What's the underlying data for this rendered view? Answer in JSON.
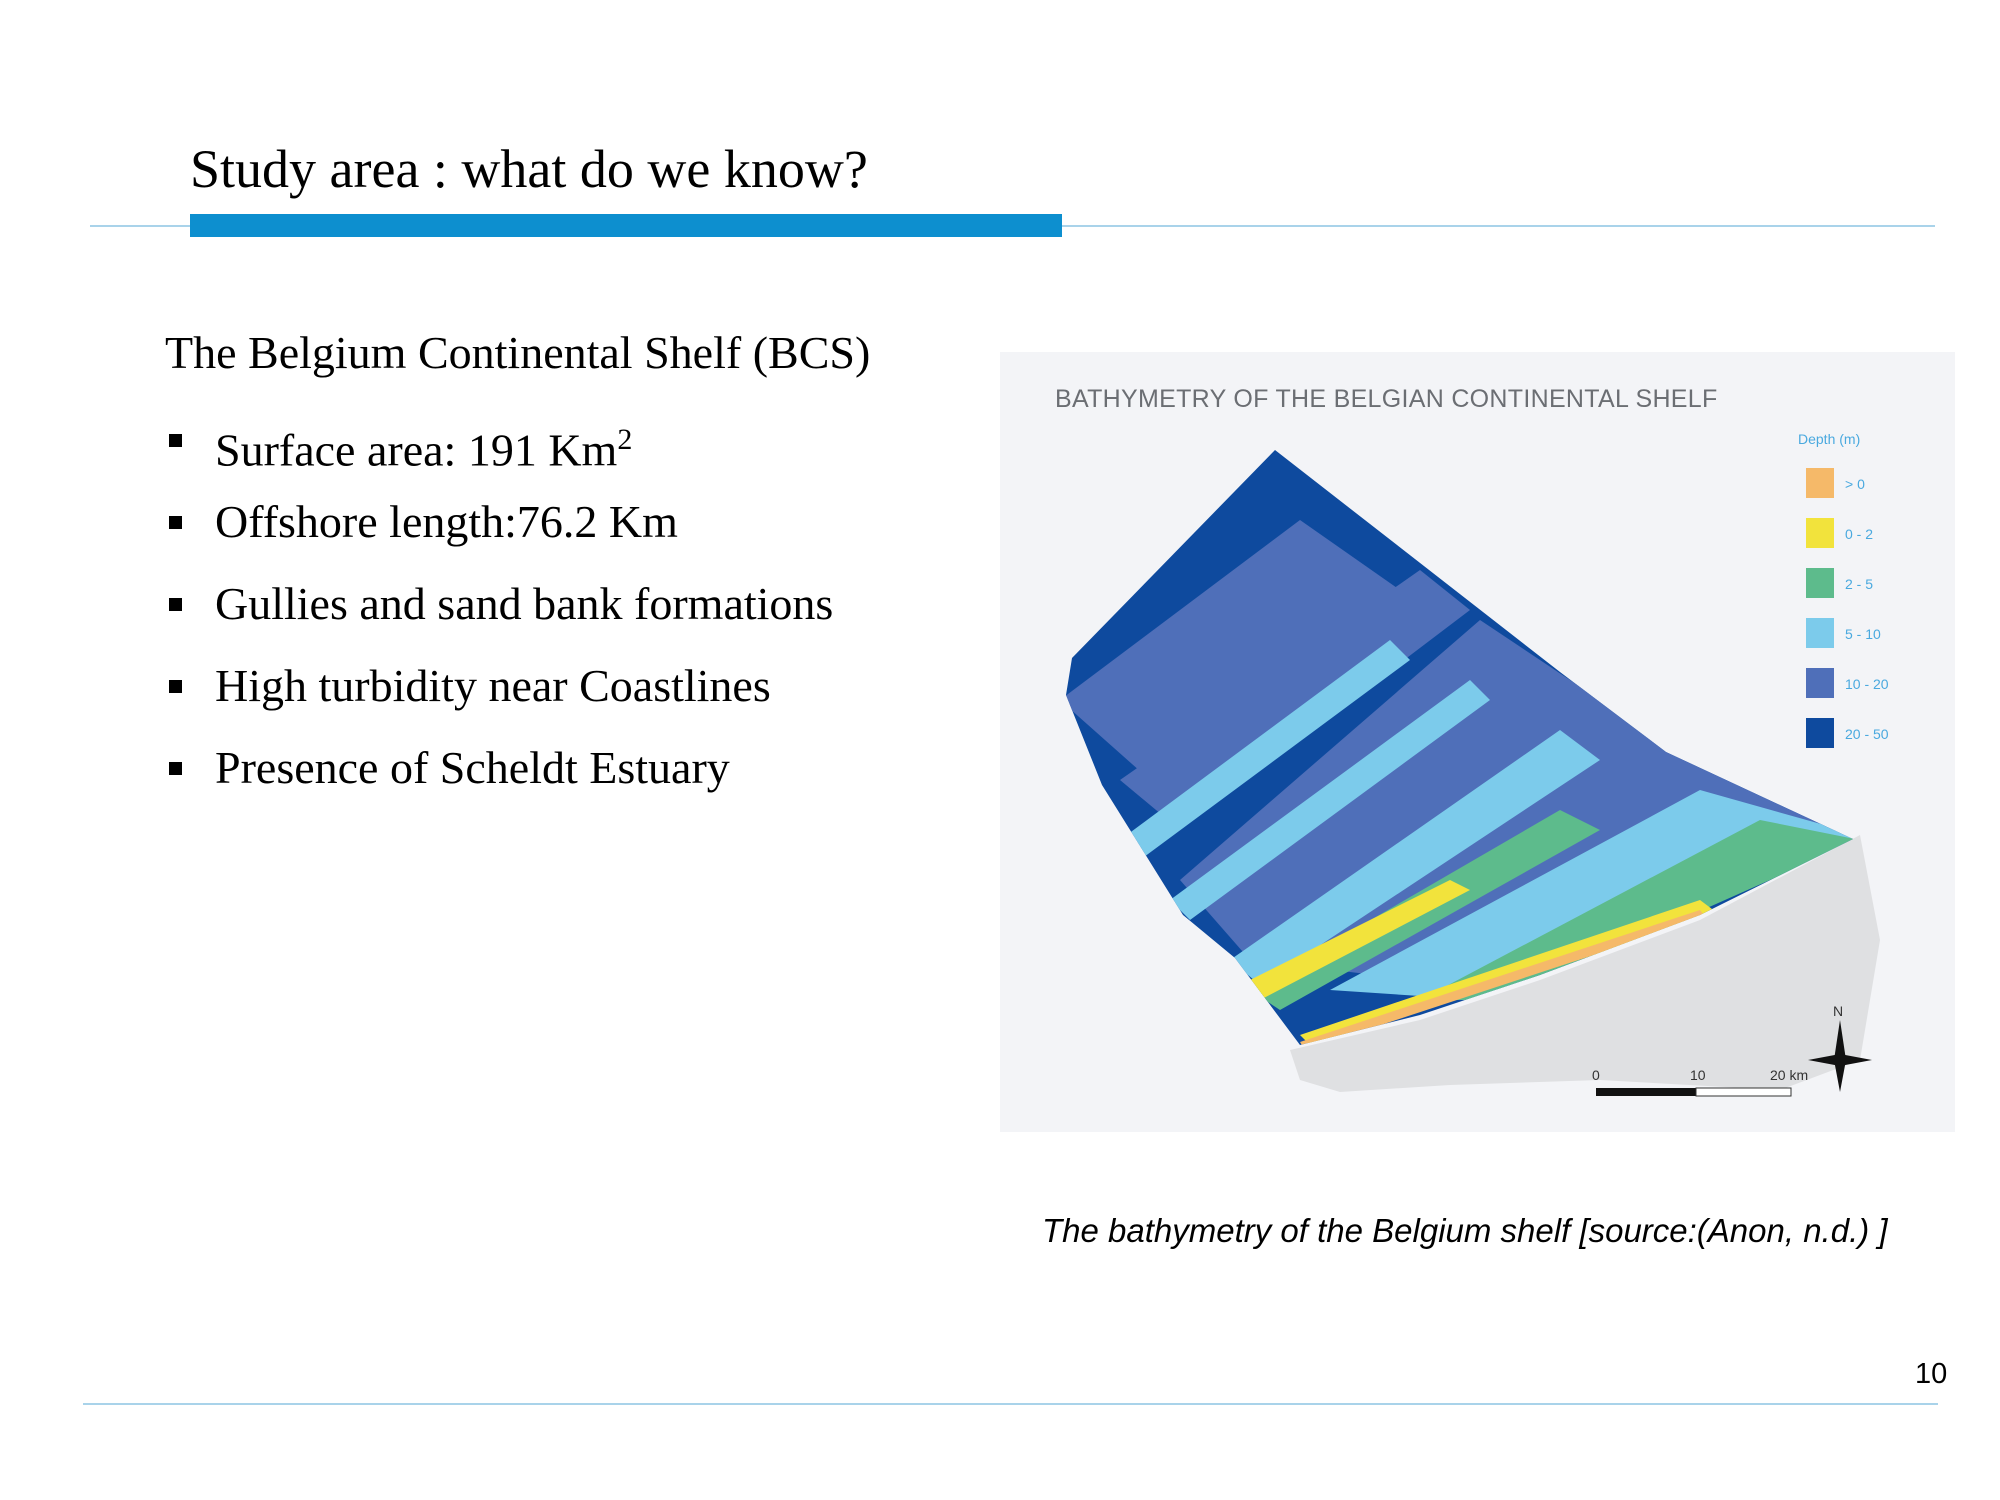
{
  "slide": {
    "title": "Study area : what do we know?",
    "intro": "The Belgium Continental Shelf (BCS)",
    "bullets": [
      {
        "text": "Surface area: 191 Km",
        "sup": "2"
      },
      {
        "text": "Offshore length:76.2 Km",
        "sup": ""
      },
      {
        "text": "Gullies and sand bank formations",
        "sup": ""
      },
      {
        "text": "High turbidity near Coastlines",
        "sup": ""
      },
      {
        "text": "Presence of Scheldt Estuary",
        "sup": ""
      }
    ],
    "caption": "The bathymetry of the Belgium shelf  [source:(Anon, n.d.) ]",
    "page_number": "10"
  },
  "map": {
    "title": "BATHYMETRY OF THE BELGIAN CONTINENTAL SHELF",
    "legend_title": "Depth (m)",
    "legend": [
      {
        "label": "> 0",
        "color": "#f5b969"
      },
      {
        "label": "0 - 2",
        "color": "#f2e33c"
      },
      {
        "label": "2 - 5",
        "color": "#5dbb8c"
      },
      {
        "label": "5 - 10",
        "color": "#7ccbeb"
      },
      {
        "label": "10 - 20",
        "color": "#4f6fb9"
      },
      {
        "label": "20 - 50",
        "color": "#0e4a9e"
      }
    ],
    "north_label": "N",
    "scale_labels": [
      "0",
      "10",
      "20 km"
    ]
  },
  "colors": {
    "accent": "#0d8fcf",
    "rule": "#a9d3ea"
  }
}
